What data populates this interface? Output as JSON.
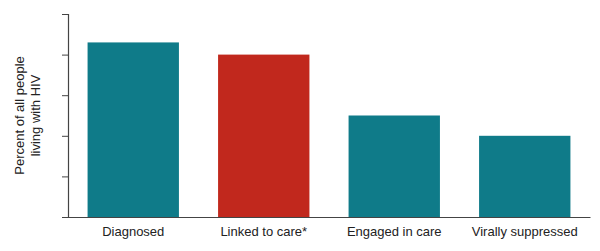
{
  "chart_data": {
    "type": "bar",
    "ylabel": "Percent of all people living with HIV",
    "categories": [
      "Diagnosed",
      "Linked to care*",
      "Engaged in care",
      "Virally suppressed"
    ],
    "values": [
      86,
      80,
      50,
      40
    ],
    "colors": [
      "#0f7b89",
      "#c1281d",
      "#0f7b89",
      "#0f7b89"
    ],
    "ylim": [
      0,
      100
    ],
    "yticks": [
      0,
      20,
      40,
      60,
      80,
      100
    ],
    "grid": false,
    "tick_labels": "x"
  }
}
